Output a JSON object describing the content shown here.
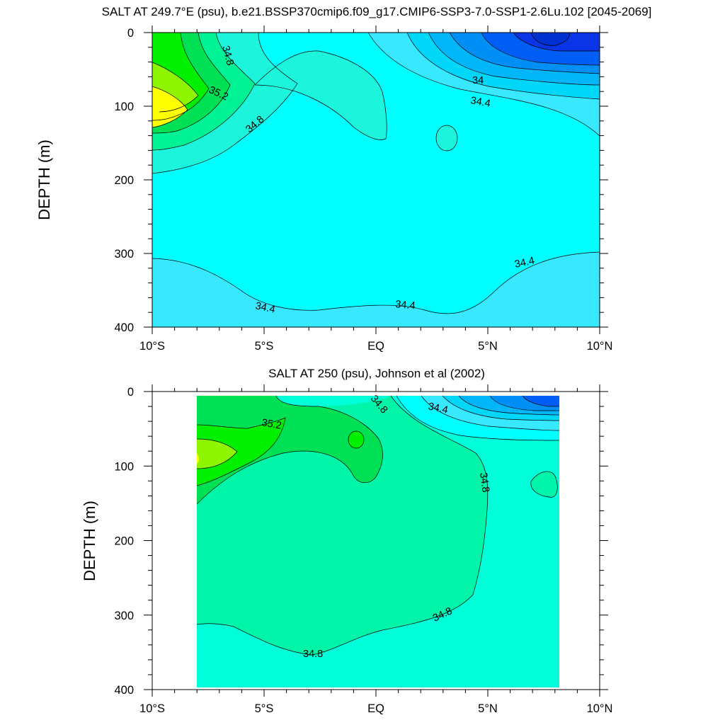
{
  "chart_data": [
    {
      "type": "contour",
      "title": "SALT AT 249.7°E (psu), b.e21.BSSP370cmip6.f09_g17.CMIP6-SSP3-7.0-SSP1-2.6Lu.102 [2045-2069]",
      "ylabel": "DEPTH (m)",
      "xlabel": "",
      "x_ticks": [
        "10°S",
        "5°S",
        "EQ",
        "5°N",
        "10°N"
      ],
      "xlim": [
        -10,
        10
      ],
      "y_ticks": [
        "0",
        "100",
        "200",
        "300",
        "400"
      ],
      "ylim": [
        0,
        400
      ],
      "y_inverted": true,
      "contour_interval": 0.2,
      "contour_labels": [
        "34.8",
        "35.2",
        "34",
        "34.4",
        "34.8",
        "34.4",
        "34.4",
        "34.4"
      ],
      "fill_colors": [
        "#0a35e6",
        "#005ef5",
        "#0090f5",
        "#00b6f8",
        "#00d6f8",
        "#38e8ff",
        "#00ffff",
        "#1cf5dc",
        "#00f294",
        "#00e054",
        "#00f000",
        "#90f500",
        "#ffff00"
      ]
    },
    {
      "type": "contour",
      "title": "SALT AT 250 (psu), Johnson et al (2002)",
      "ylabel": "DEPTH (m)",
      "xlabel": "",
      "x_ticks": [
        "10°S",
        "5°S",
        "EQ",
        "5°N",
        "10°N"
      ],
      "xlim": [
        -10,
        10
      ],
      "y_ticks": [
        "0",
        "100",
        "200",
        "300",
        "400"
      ],
      "ylim": [
        0,
        400
      ],
      "y_inverted": true,
      "data_extent_lon": [
        -8,
        8.2
      ],
      "contour_interval": 0.2,
      "contour_labels": [
        "35.2",
        "34.8",
        "34.4",
        "34.8",
        "34.8",
        "34.8"
      ],
      "fill_colors": [
        "#005ef5",
        "#0090f5",
        "#00b6f8",
        "#00d6f8",
        "#38e8ff",
        "#00ffff",
        "#00ffd8",
        "#00f5a8",
        "#00f294",
        "#00e054",
        "#00f000",
        "#90f500",
        "#ffff00"
      ]
    }
  ]
}
